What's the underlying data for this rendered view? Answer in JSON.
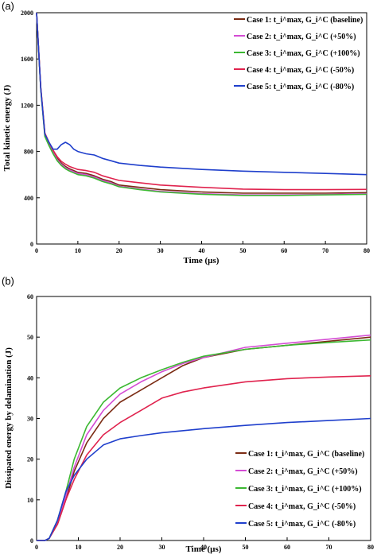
{
  "chart_data": [
    {
      "panel_label": "(a)",
      "type": "line",
      "xlabel": "Time (µs)",
      "ylabel": "Total kinetic energy (J)",
      "xlim": [
        0,
        80
      ],
      "ylim": [
        0,
        2000
      ],
      "xticks": [
        "0",
        "10",
        "20",
        "30",
        "40",
        "50",
        "60",
        "70",
        "80"
      ],
      "yticks": [
        "0",
        "400",
        "800",
        "1200",
        "1600",
        "2000"
      ],
      "legend_position": "top-right",
      "series": [
        {
          "name": "Case 1: t_i^max, G_i^C (baseline)",
          "color": "#7b2c14",
          "points": [
            [
              0,
              2000
            ],
            [
              1,
              1350
            ],
            [
              2,
              950
            ],
            [
              3,
              870
            ],
            [
              4,
              800
            ],
            [
              5,
              740
            ],
            [
              6,
              700
            ],
            [
              7,
              670
            ],
            [
              8,
              650
            ],
            [
              10,
              620
            ],
            [
              12,
              610
            ],
            [
              14,
              590
            ],
            [
              16,
              560
            ],
            [
              18,
              540
            ],
            [
              20,
              510
            ],
            [
              25,
              490
            ],
            [
              30,
              470
            ],
            [
              40,
              450
            ],
            [
              50,
              440
            ],
            [
              60,
              440
            ],
            [
              70,
              440
            ],
            [
              80,
              445
            ]
          ]
        },
        {
          "name": "Case 2: t_i^max, G_i^C (+50%)",
          "color": "#d44cd4",
          "points": [
            [
              0,
              2000
            ],
            [
              1,
              1350
            ],
            [
              2,
              940
            ],
            [
              3,
              860
            ],
            [
              4,
              790
            ],
            [
              5,
              730
            ],
            [
              6,
              690
            ],
            [
              7,
              660
            ],
            [
              8,
              640
            ],
            [
              10,
              610
            ],
            [
              12,
              600
            ],
            [
              14,
              580
            ],
            [
              16,
              550
            ],
            [
              18,
              530
            ],
            [
              20,
              500
            ],
            [
              25,
              475
            ],
            [
              30,
              455
            ],
            [
              40,
              435
            ],
            [
              50,
              425
            ],
            [
              60,
              425
            ],
            [
              70,
              428
            ],
            [
              80,
              435
            ]
          ]
        },
        {
          "name": "Case 3: t_i^max, G_i^C (+100%)",
          "color": "#3cb832",
          "points": [
            [
              0,
              2000
            ],
            [
              1,
              1340
            ],
            [
              2,
              930
            ],
            [
              3,
              850
            ],
            [
              4,
              780
            ],
            [
              5,
              720
            ],
            [
              6,
              680
            ],
            [
              7,
              650
            ],
            [
              8,
              630
            ],
            [
              10,
              600
            ],
            [
              12,
              590
            ],
            [
              14,
              570
            ],
            [
              16,
              540
            ],
            [
              18,
              520
            ],
            [
              20,
              495
            ],
            [
              25,
              470
            ],
            [
              30,
              450
            ],
            [
              40,
              430
            ],
            [
              50,
              420
            ],
            [
              60,
              420
            ],
            [
              70,
              425
            ],
            [
              80,
              430
            ]
          ]
        },
        {
          "name": "Case 4: t_i^max, G_i^C (-50%)",
          "color": "#e0234e",
          "points": [
            [
              0,
              2000
            ],
            [
              1,
              1360
            ],
            [
              2,
              960
            ],
            [
              3,
              880
            ],
            [
              4,
              810
            ],
            [
              5,
              755
            ],
            [
              6,
              715
            ],
            [
              7,
              690
            ],
            [
              8,
              670
            ],
            [
              10,
              645
            ],
            [
              12,
              635
            ],
            [
              14,
              620
            ],
            [
              16,
              590
            ],
            [
              18,
              570
            ],
            [
              20,
              550
            ],
            [
              25,
              530
            ],
            [
              30,
              510
            ],
            [
              40,
              490
            ],
            [
              50,
              475
            ],
            [
              60,
              470
            ],
            [
              70,
              470
            ],
            [
              80,
              472
            ]
          ]
        },
        {
          "name": "Case 5: t_i^max, G_i^C (-80%)",
          "color": "#1f3fcc",
          "points": [
            [
              0,
              2000
            ],
            [
              1,
              1350
            ],
            [
              2,
              950
            ],
            [
              3,
              880
            ],
            [
              4,
              820
            ],
            [
              5,
              820
            ],
            [
              6,
              860
            ],
            [
              7,
              880
            ],
            [
              8,
              860
            ],
            [
              9,
              820
            ],
            [
              10,
              800
            ],
            [
              12,
              780
            ],
            [
              14,
              770
            ],
            [
              16,
              740
            ],
            [
              18,
              720
            ],
            [
              20,
              700
            ],
            [
              25,
              680
            ],
            [
              30,
              665
            ],
            [
              40,
              645
            ],
            [
              50,
              630
            ],
            [
              60,
              620
            ],
            [
              70,
              610
            ],
            [
              80,
              600
            ]
          ]
        }
      ]
    },
    {
      "panel_label": "(b)",
      "type": "line",
      "xlabel": "Time (µs)",
      "ylabel": "Dissipated energy by delamination (J)",
      "xlim": [
        0,
        80
      ],
      "ylim": [
        0,
        60
      ],
      "xticks": [
        "0",
        "10",
        "20",
        "30",
        "40",
        "50",
        "60",
        "70",
        "80"
      ],
      "yticks": [
        "0",
        "10",
        "20",
        "30",
        "40",
        "50",
        "60"
      ],
      "legend_position": "bottom-right",
      "series": [
        {
          "name": "Case 1: t_i^max, G_i^C (baseline)",
          "color": "#7b2c14",
          "points": [
            [
              0,
              0
            ],
            [
              2,
              0
            ],
            [
              3,
              0.5
            ],
            [
              5,
              4
            ],
            [
              7,
              10
            ],
            [
              9,
              17
            ],
            [
              12,
              24
            ],
            [
              16,
              30
            ],
            [
              20,
              34
            ],
            [
              25,
              37
            ],
            [
              30,
              40
            ],
            [
              35,
              43
            ],
            [
              40,
              45
            ],
            [
              50,
              47
            ],
            [
              60,
              48
            ],
            [
              70,
              49
            ],
            [
              80,
              50
            ]
          ]
        },
        {
          "name": "Case 2: t_i^max, G_i^C (+50%)",
          "color": "#d44cd4",
          "points": [
            [
              0,
              0
            ],
            [
              2,
              0
            ],
            [
              3,
              0.5
            ],
            [
              5,
              4.5
            ],
            [
              7,
              11
            ],
            [
              9,
              18
            ],
            [
              12,
              26
            ],
            [
              16,
              32
            ],
            [
              20,
              36
            ],
            [
              25,
              39
            ],
            [
              30,
              41.5
            ],
            [
              35,
              43.5
            ],
            [
              40,
              45
            ],
            [
              50,
              47.5
            ],
            [
              60,
              48.5
            ],
            [
              70,
              49.5
            ],
            [
              80,
              50.5
            ]
          ]
        },
        {
          "name": "Case 3: t_i^max, G_i^C (+100%)",
          "color": "#3cb832",
          "points": [
            [
              0,
              0
            ],
            [
              2,
              0
            ],
            [
              3,
              0.5
            ],
            [
              5,
              5
            ],
            [
              7,
              12
            ],
            [
              9,
              20
            ],
            [
              12,
              28
            ],
            [
              16,
              34
            ],
            [
              20,
              37.5
            ],
            [
              25,
              40
            ],
            [
              30,
              42
            ],
            [
              35,
              43.8
            ],
            [
              40,
              45.3
            ],
            [
              50,
              47
            ],
            [
              60,
              48
            ],
            [
              70,
              48.7
            ],
            [
              80,
              49.3
            ]
          ]
        },
        {
          "name": "Case 4: t_i^max, G_i^C (-50%)",
          "color": "#e0234e",
          "points": [
            [
              0,
              0
            ],
            [
              2,
              0
            ],
            [
              3,
              0.5
            ],
            [
              5,
              4
            ],
            [
              7,
              10
            ],
            [
              9,
              15
            ],
            [
              12,
              21
            ],
            [
              16,
              26
            ],
            [
              20,
              29
            ],
            [
              25,
              32
            ],
            [
              30,
              35
            ],
            [
              35,
              36.5
            ],
            [
              40,
              37.5
            ],
            [
              50,
              39
            ],
            [
              60,
              39.8
            ],
            [
              70,
              40.2
            ],
            [
              80,
              40.5
            ]
          ]
        },
        {
          "name": "Case 5: t_i^max, G_i^C (-80%)",
          "color": "#1f3fcc",
          "points": [
            [
              0,
              0
            ],
            [
              2,
              0
            ],
            [
              3,
              0.5
            ],
            [
              5,
              5
            ],
            [
              7,
              12
            ],
            [
              9,
              16
            ],
            [
              12,
              20
            ],
            [
              16,
              23.5
            ],
            [
              20,
              25
            ],
            [
              25,
              25.8
            ],
            [
              30,
              26.5
            ],
            [
              40,
              27.5
            ],
            [
              50,
              28.3
            ],
            [
              60,
              29
            ],
            [
              70,
              29.5
            ],
            [
              80,
              30
            ]
          ]
        }
      ]
    }
  ]
}
